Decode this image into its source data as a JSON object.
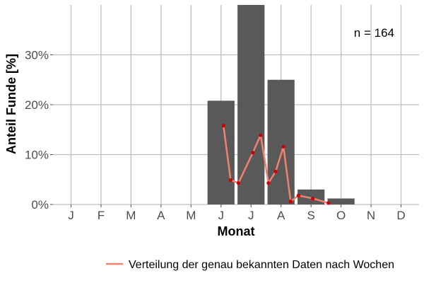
{
  "chart_data": {
    "type": "bar",
    "title": "",
    "xlabel": "Monat",
    "ylabel": "Anteil Funde [%]",
    "ylim": [
      0,
      40
    ],
    "yticks": [
      0,
      10,
      20,
      30
    ],
    "ytick_labels": [
      "0%",
      "10%",
      "20%",
      "30%"
    ],
    "grid": true,
    "legend_position": "bottom",
    "annotation": "n = 164",
    "categories": [
      "J",
      "F",
      "M",
      "A",
      "M",
      "J",
      "J",
      "A",
      "S",
      "O",
      "N",
      "D"
    ],
    "values": [
      0,
      0,
      0,
      0,
      0,
      20.8,
      40,
      25,
      3,
      1.2,
      0,
      0
    ],
    "line_series": {
      "name": "Verteilung der genau bekannten Daten nach Wochen",
      "x": [
        6.08,
        6.32,
        6.58,
        7.06,
        7.32,
        7.58,
        7.82,
        8.08,
        8.32,
        8.58,
        9.06,
        9.58
      ],
      "y": [
        15.8,
        4.9,
        4.3,
        10.4,
        13.9,
        4.3,
        6.6,
        11.6,
        0.6,
        1.8,
        1.2,
        0.3
      ]
    },
    "colors": {
      "bar": "#595959",
      "line": "#f08070",
      "point": "#cc0000",
      "grid": "#bfbfbf"
    }
  }
}
